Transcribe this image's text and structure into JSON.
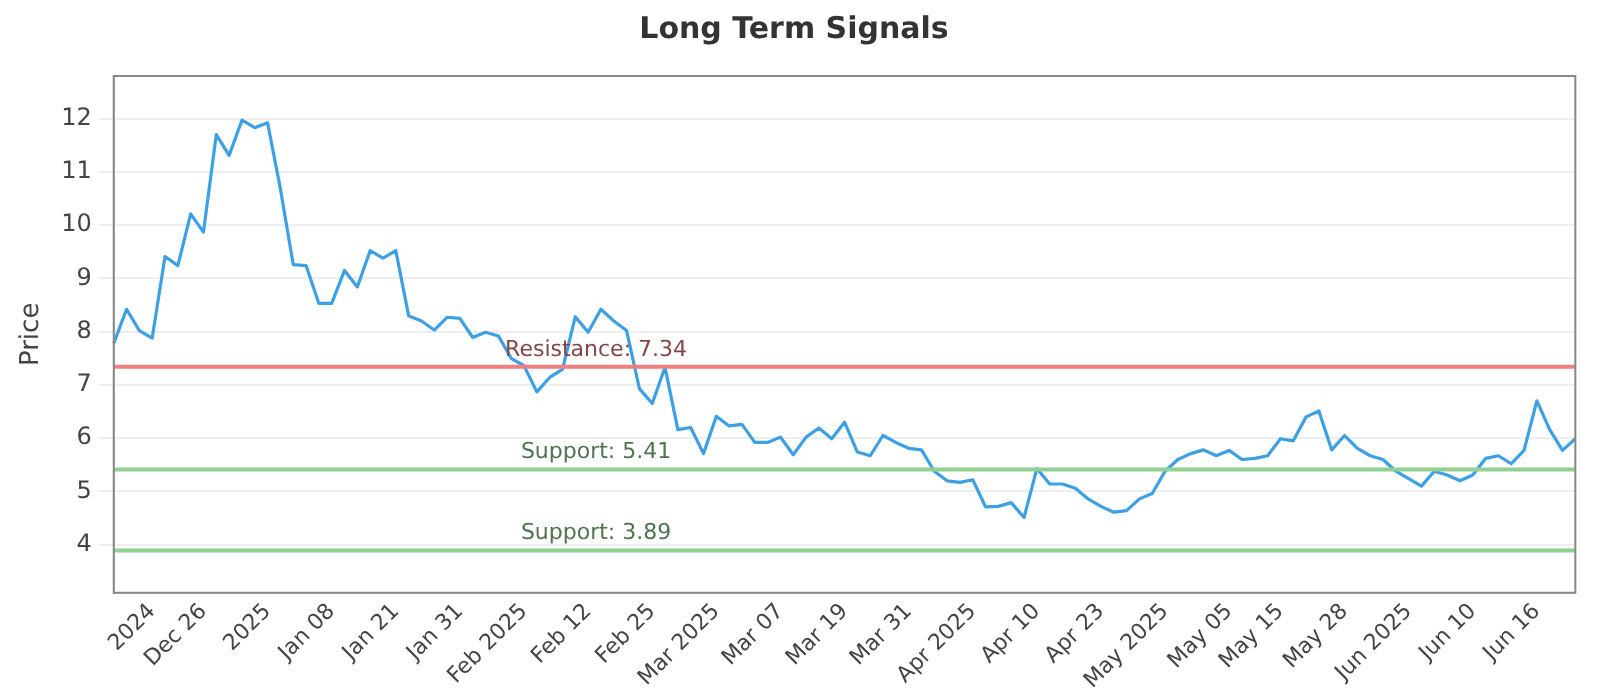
{
  "chart_data": {
    "type": "line",
    "title": "Long Term Signals",
    "ylabel": "Price",
    "categories": [
      null,
      null,
      null,
      "2024",
      null,
      null,
      null,
      "Dec 26",
      null,
      null,
      null,
      null,
      "2025",
      null,
      null,
      null,
      null,
      "Jan 08",
      null,
      null,
      null,
      null,
      "Jan 21",
      null,
      null,
      null,
      null,
      "Jan 31",
      null,
      null,
      null,
      null,
      "Feb 2025",
      null,
      null,
      null,
      null,
      "Feb 12",
      null,
      null,
      null,
      null,
      "Feb 25",
      null,
      null,
      null,
      null,
      "Mar 2025",
      null,
      null,
      null,
      null,
      "Mar 07",
      null,
      null,
      null,
      null,
      "Mar 19",
      null,
      null,
      null,
      null,
      "Mar 31",
      null,
      null,
      null,
      null,
      "Apr 2025",
      null,
      null,
      null,
      null,
      "Apr 10",
      null,
      null,
      null,
      null,
      "Apr 23",
      null,
      null,
      null,
      null,
      "May 2025",
      null,
      null,
      null,
      null,
      "May 05",
      null,
      null,
      null,
      "May 15",
      null,
      null,
      null,
      null,
      "May 28",
      null,
      null,
      null,
      null,
      "Jun 2025",
      null,
      null,
      null,
      null,
      "Jun 10",
      null,
      null,
      null,
      null,
      "Jun 16",
      null,
      null,
      null
    ],
    "series": [
      {
        "color": "#3ea0e4",
        "values": [
          7.78,
          8.42,
          8.02,
          7.88,
          9.41,
          9.24,
          10.21,
          9.87,
          11.7,
          11.31,
          11.97,
          11.83,
          11.92,
          10.68,
          9.26,
          9.24,
          8.53,
          8.53,
          9.15,
          8.84,
          9.52,
          9.38,
          9.52,
          8.3,
          8.2,
          8.03,
          8.27,
          8.25,
          7.89,
          7.99,
          7.92,
          7.5,
          7.36,
          6.87,
          7.14,
          7.29,
          8.28,
          7.99,
          8.42,
          8.2,
          8.02,
          6.93,
          6.65,
          7.33,
          6.16,
          6.2,
          5.71,
          6.41,
          6.23,
          6.26,
          5.92,
          5.92,
          6.02,
          5.69,
          6.02,
          6.19,
          5.99,
          6.3,
          5.74,
          5.67,
          6.05,
          5.92,
          5.81,
          5.78,
          5.38,
          5.2,
          5.17,
          5.22,
          4.71,
          4.72,
          4.79,
          4.51,
          5.43,
          5.14,
          5.14,
          5.06,
          4.86,
          4.72,
          4.61,
          4.64,
          4.86,
          4.96,
          5.38,
          5.6,
          5.71,
          5.78,
          5.67,
          5.77,
          5.6,
          5.62,
          5.67,
          5.99,
          5.95,
          6.4,
          6.51,
          5.78,
          6.05,
          5.81,
          5.67,
          5.6,
          5.38,
          5.24,
          5.1,
          5.38,
          5.31,
          5.2,
          5.31,
          5.62,
          5.67,
          5.52,
          5.77,
          6.7,
          6.16,
          5.77,
          5.99
        ]
      }
    ],
    "ylim": [
      3.1,
      12.8
    ],
    "yticks": [
      4,
      5,
      6,
      7,
      8,
      9,
      10,
      11,
      12
    ],
    "grid": "y",
    "marker": "none",
    "line_style": "solid",
    "legend": false,
    "ref_lines": [
      {
        "axis": "y",
        "value": 7.34,
        "label": "Resistance: 7.34",
        "color": "#f08080"
      },
      {
        "axis": "y",
        "value": 5.41,
        "label": "Support: 5.41",
        "color": "#90d090"
      },
      {
        "axis": "y",
        "value": 3.89,
        "label": "Support: 3.89",
        "color": "#90d090"
      }
    ]
  }
}
